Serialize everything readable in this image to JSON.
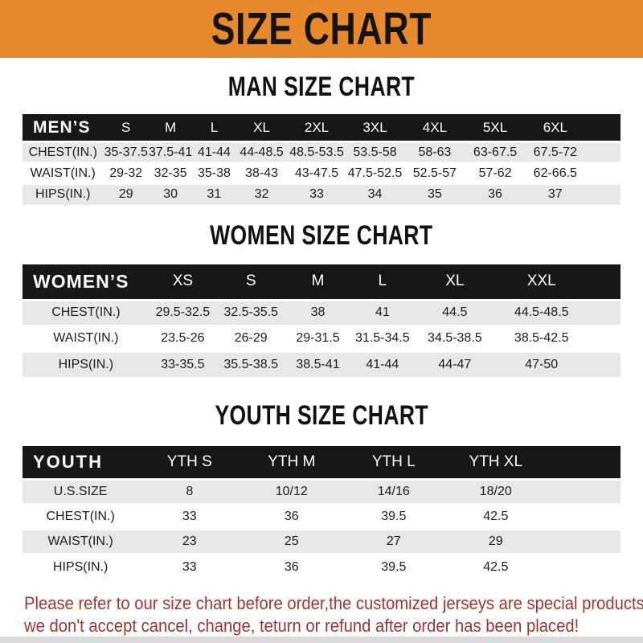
{
  "banner": {
    "title": "SIZE CHART"
  },
  "colors": {
    "banner_bg": "#E8892B",
    "bar_bg": "#171717",
    "stripe_bg": "#E7E7E7",
    "note_color": "#9E3434"
  },
  "sections": [
    {
      "heading": "MAN SIZE CHART",
      "header_label": "MEN’S",
      "columns": [
        "S",
        "M",
        "L",
        "XL",
        "2XL",
        "3XL",
        "4XL",
        "5XL",
        "6XL"
      ],
      "rows": [
        {
          "label": "CHEST(IN.)",
          "values": [
            "35-37.5",
            "37.5-41",
            "41-44",
            "44-48.5",
            "48.5-53.5",
            "53.5-58",
            "58-63",
            "63-67.5",
            "67.5-72"
          ]
        },
        {
          "label": "WAIST(IN.)",
          "values": [
            "29-32",
            "32-35",
            "35-38",
            "38-43",
            "43-47.5",
            "47.5-52.5",
            "52.5-57",
            "57-62",
            "62-66.5"
          ]
        },
        {
          "label": "HIPS(IN.)",
          "values": [
            "29",
            "30",
            "31",
            "32",
            "33",
            "34",
            "35",
            "36",
            "37"
          ]
        }
      ]
    },
    {
      "heading": "WOMEN SIZE CHART",
      "header_label": "WOMEN’S",
      "columns": [
        "XS",
        "S",
        "M",
        "L",
        "XL",
        "XXL"
      ],
      "rows": [
        {
          "label": "CHEST(IN.)",
          "values": [
            "29.5-32.5",
            "32.5-35.5",
            "38",
            "41",
            "44.5",
            "44.5-48.5"
          ]
        },
        {
          "label": "WAIST(IN.)",
          "values": [
            "23.5-26",
            "26-29",
            "29-31.5",
            "31.5-34.5",
            "34.5-38.5",
            "38.5-42.5"
          ]
        },
        {
          "label": "HIPS(IN.)",
          "values": [
            "33-35.5",
            "35.5-38.5",
            "38.5-41",
            "41-44",
            "44-47",
            "47-50"
          ]
        }
      ]
    },
    {
      "heading": "YOUTH SIZE CHART",
      "header_label": "YOUTH",
      "columns": [
        "YTH S",
        "YTH M",
        "YTH L",
        "YTH XL"
      ],
      "rows": [
        {
          "label": "U.S.SIZE",
          "values": [
            "8",
            "10/12",
            "14/16",
            "18/20"
          ]
        },
        {
          "label": "CHEST(IN.)",
          "values": [
            "33",
            "36",
            "39.5",
            "42.5"
          ]
        },
        {
          "label": "WAIST(IN.)",
          "values": [
            "23",
            "25",
            "27",
            "29"
          ]
        },
        {
          "label": "HIPS(IN.)",
          "values": [
            "33",
            "36",
            "39.5",
            "42.5"
          ]
        }
      ]
    }
  ],
  "footer": {
    "line1": "Please refer to our size chart before order,the customized jerseys are special products,",
    "line2": "we don't accept cancel, change, teturn or refund after order has been placed!"
  }
}
